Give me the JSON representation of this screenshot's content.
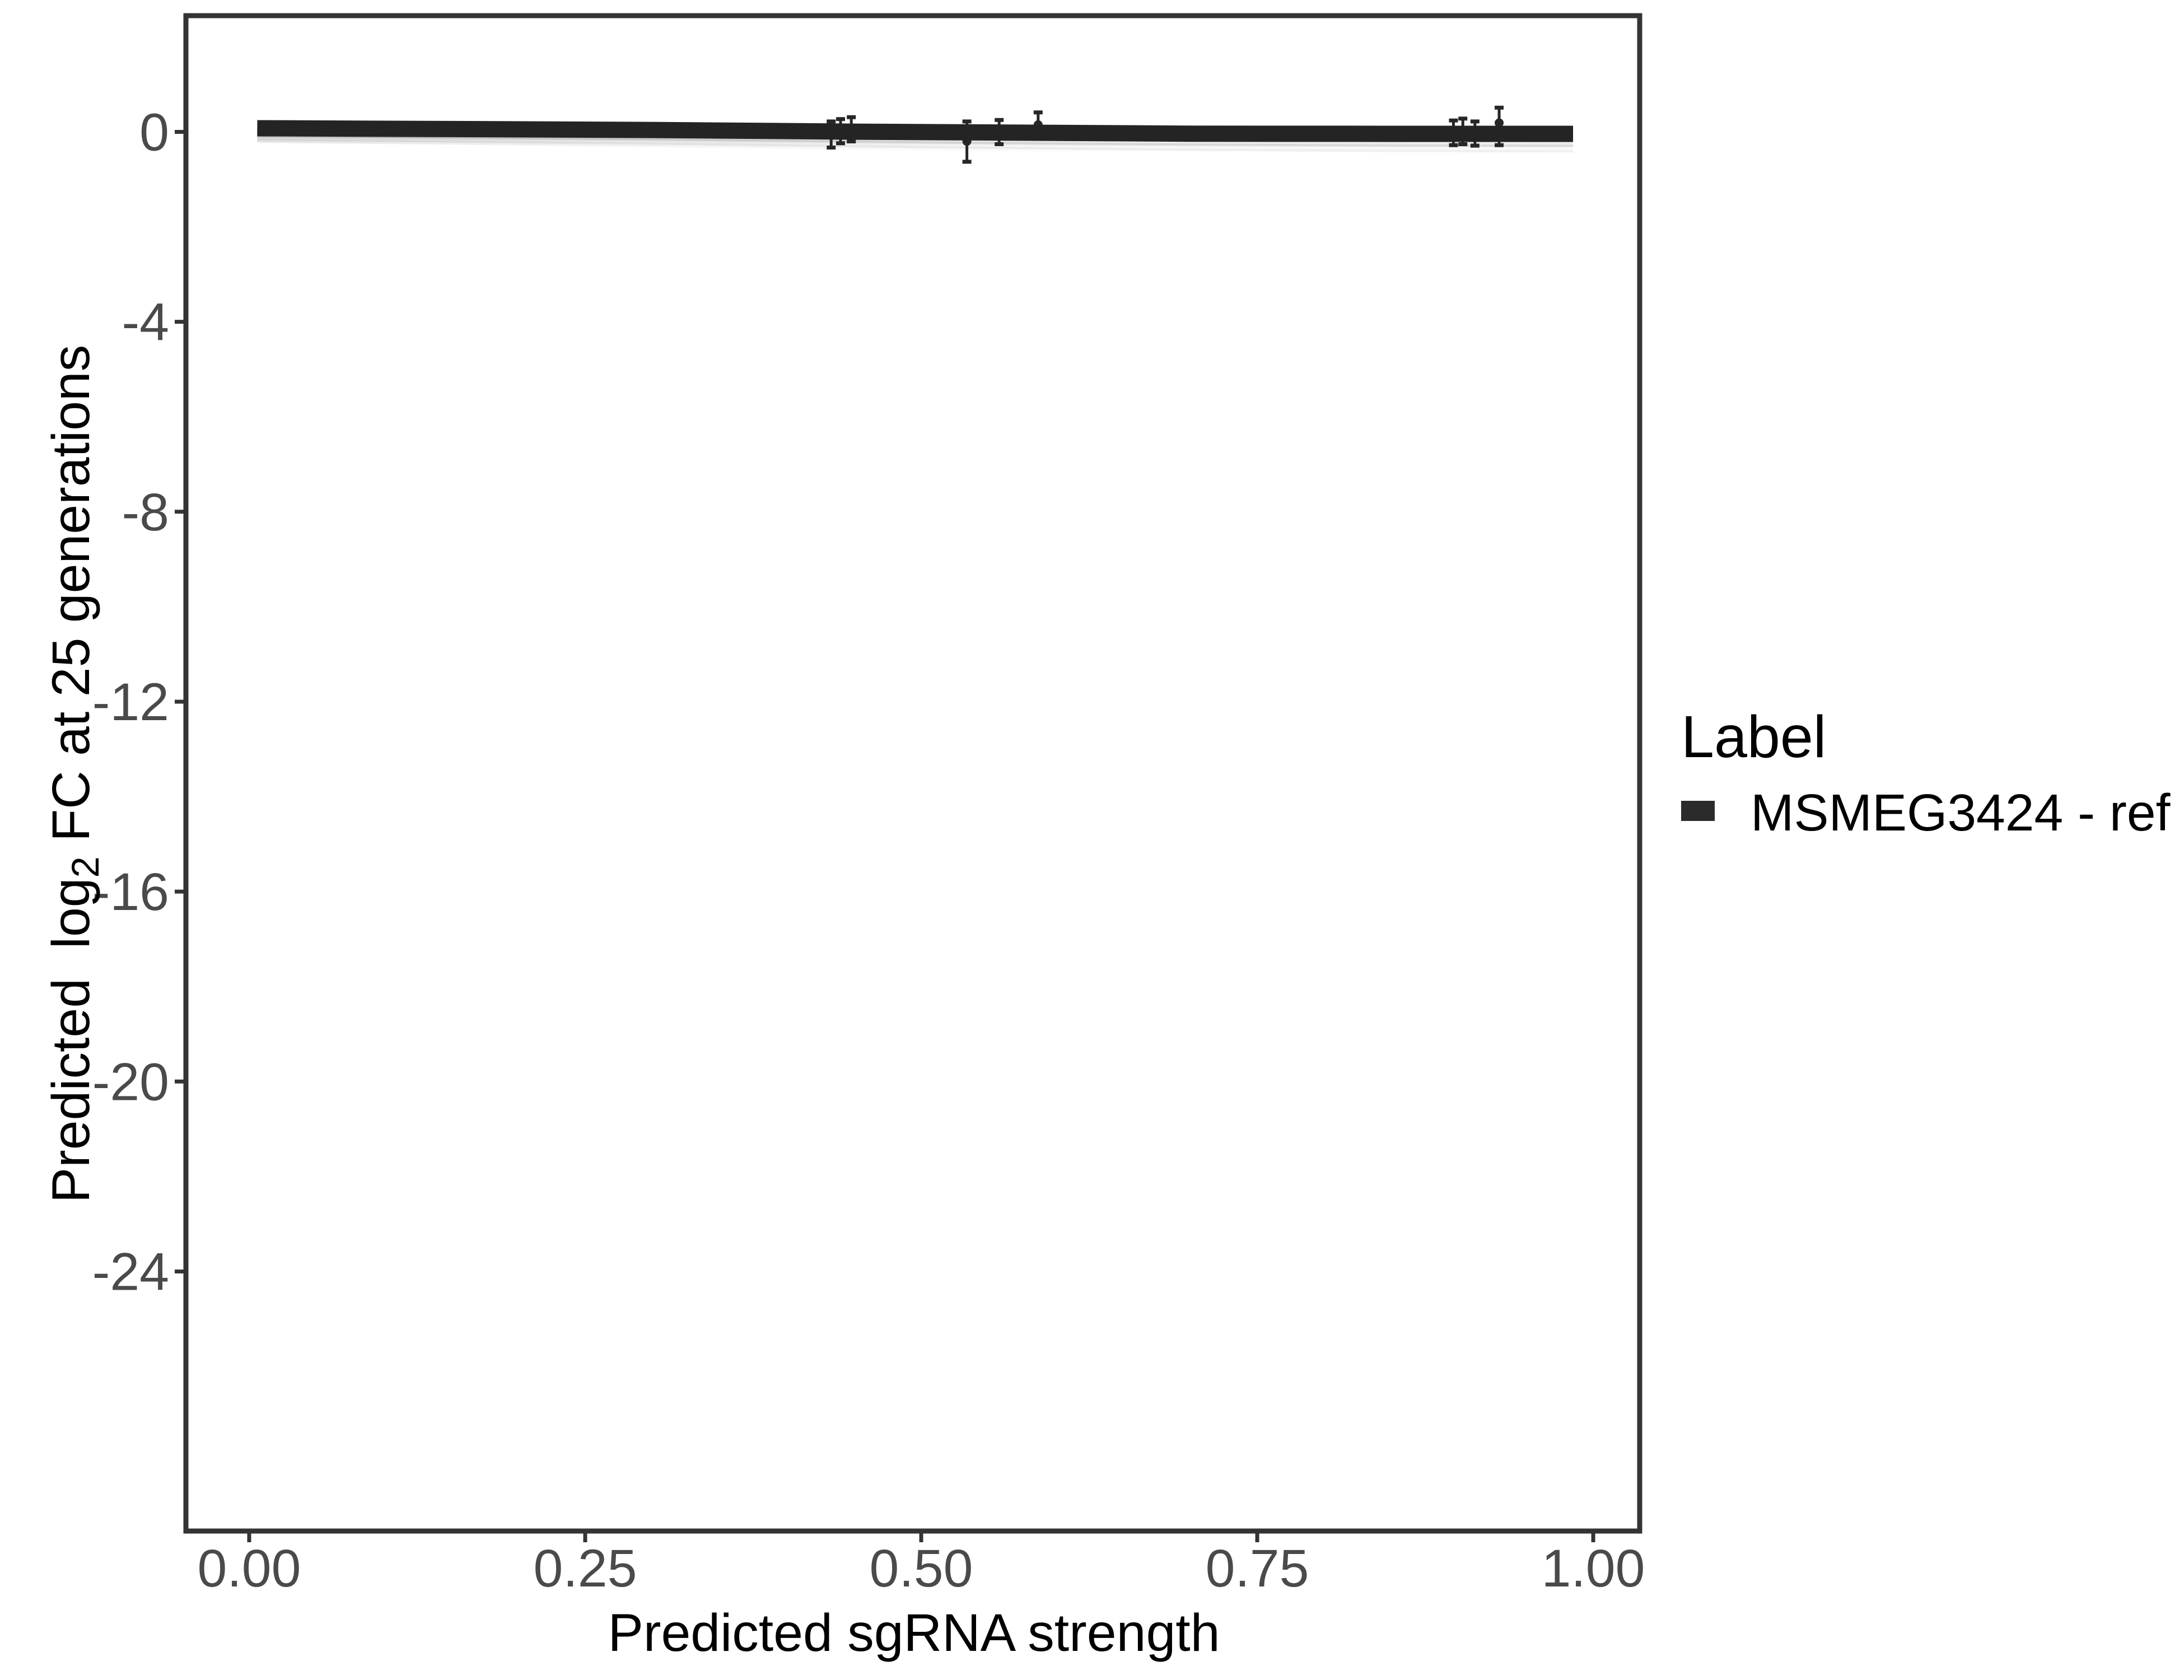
{
  "figure": {
    "background": "#ffffff",
    "legend": {
      "title": "Label",
      "position": "right",
      "items": [
        {
          "label": "MSMEG3424 - ref",
          "key": "thick-line-swatch",
          "color": "#2b2b2b"
        }
      ]
    }
  },
  "chart_data": {
    "type": "line",
    "title": "",
    "xlabel": "Predicted sgRNA strength",
    "ylabel": "Predicted log2 FC at 25 generations",
    "ylabel_rich": {
      "pre": "Predicted  log",
      "sub": "2",
      "post": " FC at 25 generations"
    },
    "xlim": [
      -0.0454,
      1.0329
    ],
    "ylim": [
      -29.42,
      2.4
    ],
    "grid": false,
    "legend_position": "right",
    "x_ticks": [
      {
        "value": 0.0,
        "label": "0.00"
      },
      {
        "value": 0.25,
        "label": "0.25"
      },
      {
        "value": 0.5,
        "label": "0.50"
      },
      {
        "value": 0.75,
        "label": "0.75"
      },
      {
        "value": 1.0,
        "label": "1.00"
      }
    ],
    "y_ticks": [
      {
        "value": 0,
        "label": "0"
      },
      {
        "value": -4,
        "label": "-4"
      },
      {
        "value": -8,
        "label": "-8"
      },
      {
        "value": -12,
        "label": "-12"
      },
      {
        "value": -16,
        "label": "-16"
      },
      {
        "value": -20,
        "label": "-20"
      },
      {
        "value": -24,
        "label": "-24"
      }
    ],
    "style": {
      "panel_border_color": "#343434",
      "panel_border_width": 9,
      "tick_color": "#343434",
      "tick_label_color": "#4a4a4a",
      "tick_label_size": 95
    },
    "series": [
      {
        "name": "MSMEG3424 - ref",
        "type": "fit-line",
        "color": "#242424",
        "stroke_width": 29,
        "x": [
          0.006,
          0.15,
          0.3,
          0.45,
          0.55,
          0.7,
          0.85,
          0.985
        ],
        "y": [
          0.077,
          0.06,
          0.04,
          0.005,
          -0.012,
          -0.038,
          -0.041,
          -0.041
        ]
      },
      {
        "name": "uncertainty-band",
        "type": "band",
        "x": [
          0.006,
          0.15,
          0.3,
          0.45,
          0.55,
          0.7,
          0.85,
          0.985
        ],
        "upper": [
          0.077,
          0.06,
          0.04,
          0.005,
          -0.012,
          -0.038,
          -0.041,
          -0.041
        ],
        "lower": [
          -0.23,
          -0.27,
          -0.32,
          -0.38,
          -0.42,
          -0.46,
          -0.49,
          -0.5
        ]
      },
      {
        "name": "sgRNA-measurements",
        "type": "pointrange",
        "color": "#262626",
        "points": [
          {
            "x": 0.433,
            "y": -0.05,
            "lo": -0.33,
            "hi": 0.22
          },
          {
            "x": 0.44,
            "y": 0.02,
            "lo": -0.24,
            "hi": 0.27
          },
          {
            "x": 0.448,
            "y": 0.06,
            "lo": -0.2,
            "hi": 0.31
          },
          {
            "x": 0.534,
            "y": -0.2,
            "lo": -0.63,
            "hi": 0.22
          },
          {
            "x": 0.558,
            "y": -0.01,
            "lo": -0.26,
            "hi": 0.25
          },
          {
            "x": 0.587,
            "y": 0.15,
            "lo": -0.11,
            "hi": 0.41
          },
          {
            "x": 0.896,
            "y": -0.02,
            "lo": -0.28,
            "hi": 0.24
          },
          {
            "x": 0.903,
            "y": 0.01,
            "lo": -0.26,
            "hi": 0.28
          },
          {
            "x": 0.912,
            "y": -0.04,
            "lo": -0.29,
            "hi": 0.22
          },
          {
            "x": 0.93,
            "y": 0.19,
            "lo": -0.28,
            "hi": 0.51
          }
        ]
      }
    ]
  }
}
